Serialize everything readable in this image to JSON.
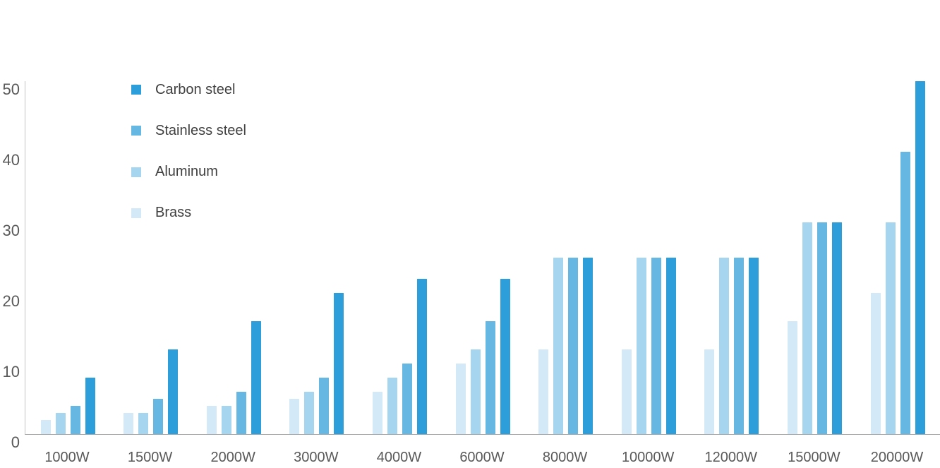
{
  "chart_data": {
    "type": "bar",
    "title": "",
    "xlabel": "",
    "ylabel": "",
    "categories": [
      "1000W",
      "1500W",
      "2000W",
      "3000W",
      "4000W",
      "6000W",
      "8000W",
      "10000W",
      "12000W",
      "15000W",
      "20000W"
    ],
    "series": [
      {
        "name": "Carbon steel",
        "color": "#2e9eda",
        "values": [
          8,
          12,
          16,
          20,
          22,
          22,
          25,
          25,
          25,
          30,
          50
        ]
      },
      {
        "name": "Stainless steel",
        "color": "#66b8e3",
        "values": [
          4,
          5,
          6,
          8,
          10,
          16,
          25,
          25,
          25,
          30,
          40
        ]
      },
      {
        "name": "Aluminum",
        "color": "#a6d5f0",
        "values": [
          3,
          3,
          4,
          6,
          8,
          12,
          25,
          25,
          25,
          30,
          30
        ]
      },
      {
        "name": "Brass",
        "color": "#d4e9f7",
        "values": [
          2,
          3,
          4,
          5,
          6,
          10,
          12,
          12,
          12,
          16,
          20
        ]
      }
    ],
    "bar_order_left_to_right": [
      "Brass",
      "Aluminum",
      "Stainless steel",
      "Carbon steel"
    ],
    "ylim": [
      0,
      50
    ],
    "y_tick_labels": [
      "0",
      "10",
      "20",
      "30",
      "40",
      "50"
    ],
    "y_tick_values": [
      0,
      10,
      20,
      30,
      40,
      50
    ],
    "grid": false,
    "legend_position": "top-left"
  },
  "colors": {
    "background": "#ffffff",
    "axis_line_vertical": "#c2c2c2",
    "axis_line_horizontal": "#a9a9a9",
    "tick_label": "#595959",
    "legend_label": "#404040"
  }
}
